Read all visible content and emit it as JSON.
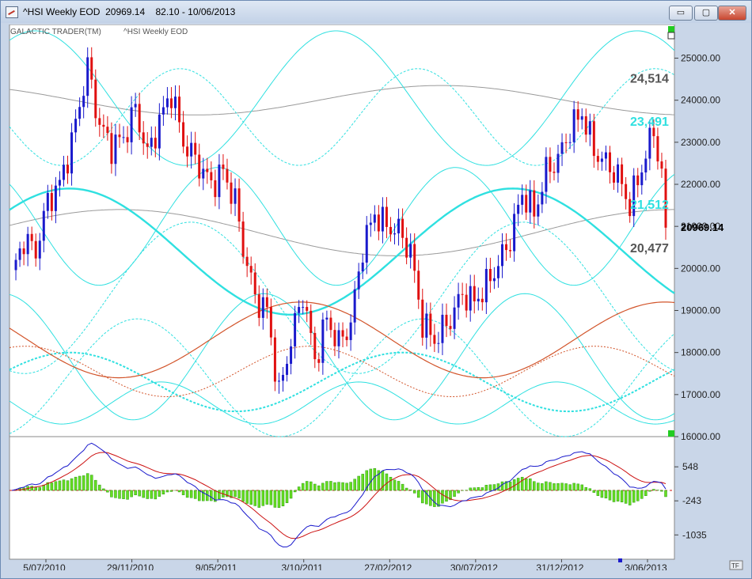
{
  "window": {
    "title": "^HSI Weekly EOD  20969.14    82.10 - 10/06/2013",
    "minimize_label": "▭",
    "restore_label": "▢",
    "close_label": "✕"
  },
  "header": {
    "indicator": "GALACTIC TRADER(TM)",
    "instrument": "^HSI Weekly EOD"
  },
  "footer": {
    "tf_badge": "TF"
  },
  "colors": {
    "background": "#ffffff",
    "up": "#1a1acc",
    "down": "#e01010",
    "cyan": "#2fe0e0",
    "gray": "#9a9a9a",
    "orange": "#d2542a",
    "macd_hist": "#66dd22",
    "macd_line": "#1a1acc",
    "signal_line": "#cc1010"
  },
  "chart_data": [
    {
      "type": "candlestick",
      "title": "^HSI Weekly EOD",
      "x_ticks": [
        "5/07/2010",
        "29/11/2010",
        "9/05/2011",
        "3/10/2011",
        "27/02/2012",
        "30/07/2012",
        "31/12/2012",
        "3/06/2013"
      ],
      "y_ticks": [
        "25000.00",
        "24000.00",
        "23000.00",
        "22000.00",
        "21000.00",
        "20000.00",
        "19000.00",
        "18000.00",
        "17000.00",
        "16000.00"
      ],
      "ylim": [
        16000,
        25800
      ],
      "last_price": "20969.14",
      "level_labels": [
        {
          "text": "24,514",
          "value": 24514,
          "color": "#555555"
        },
        {
          "text": "23,491",
          "value": 23491,
          "color": "#2fe0e0"
        },
        {
          "text": "21,512",
          "value": 21512,
          "color": "#2fe0e0"
        },
        {
          "text": "20,477",
          "value": 20477,
          "color": "#555555"
        }
      ],
      "close_anchors": [
        [
          0,
          19800
        ],
        [
          3,
          20700
        ],
        [
          6,
          20400
        ],
        [
          9,
          21600
        ],
        [
          12,
          22000
        ],
        [
          15,
          23000
        ],
        [
          19,
          24800
        ],
        [
          22,
          23400
        ],
        [
          25,
          22900
        ],
        [
          28,
          23100
        ],
        [
          31,
          23800
        ],
        [
          34,
          22700
        ],
        [
          37,
          23500
        ],
        [
          40,
          24200
        ],
        [
          43,
          23000
        ],
        [
          46,
          22600
        ],
        [
          50,
          22000
        ],
        [
          53,
          22300
        ],
        [
          56,
          21600
        ],
        [
          58,
          20500
        ],
        [
          61,
          19300
        ],
        [
          64,
          19000
        ],
        [
          67,
          17000
        ],
        [
          70,
          18300
        ],
        [
          73,
          19400
        ],
        [
          76,
          17800
        ],
        [
          79,
          18800
        ],
        [
          82,
          18200
        ],
        [
          85,
          18700
        ],
        [
          88,
          20500
        ],
        [
          91,
          21300
        ],
        [
          94,
          21000
        ],
        [
          97,
          20900
        ],
        [
          100,
          20400
        ],
        [
          103,
          18700
        ],
        [
          106,
          18300
        ],
        [
          110,
          18800
        ],
        [
          113,
          19400
        ],
        [
          116,
          19200
        ],
        [
          119,
          19600
        ],
        [
          122,
          20100
        ],
        [
          125,
          20700
        ],
        [
          128,
          21800
        ],
        [
          131,
          21300
        ],
        [
          134,
          22300
        ],
        [
          137,
          22600
        ],
        [
          140,
          23300
        ],
        [
          143,
          23700
        ],
        [
          146,
          22800
        ],
        [
          149,
          22500
        ],
        [
          152,
          22200
        ],
        [
          155,
          21500
        ],
        [
          158,
          22400
        ],
        [
          161,
          23300
        ],
        [
          163,
          22200
        ],
        [
          164,
          20969
        ]
      ]
    },
    {
      "type": "line",
      "title": "",
      "y_ticks": [
        "548",
        "-243",
        "-1035"
      ],
      "ylim": [
        -1600,
        1250
      ]
    }
  ]
}
